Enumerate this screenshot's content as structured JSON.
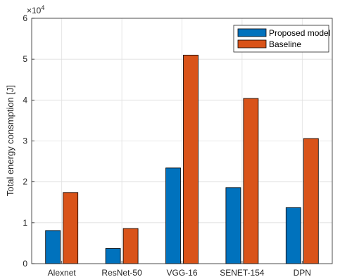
{
  "chart_data": {
    "type": "bar",
    "categories": [
      "Alexnet",
      "ResNet-50",
      "VGG-16",
      "SENET-154",
      "DPN"
    ],
    "series": [
      {
        "name": "Proposed model",
        "values": [
          8100,
          3700,
          23400,
          18600,
          13700
        ],
        "color": "#0072BD"
      },
      {
        "name": "Baseline",
        "values": [
          17400,
          8600,
          51000,
          40400,
          30600
        ],
        "color": "#D95319"
      }
    ],
    "title": "",
    "xlabel": "",
    "ylabel": "Total energy consmption [J]",
    "ylim": [
      0,
      60000
    ],
    "yticks": [
      0,
      10000,
      20000,
      30000,
      40000,
      50000,
      60000
    ],
    "ytick_labels": [
      "0",
      "1",
      "2",
      "3",
      "4",
      "5",
      "6"
    ],
    "y_exponent_label": "×10",
    "y_exponent_power": "4",
    "grid": true,
    "legend_position": "top-right"
  }
}
